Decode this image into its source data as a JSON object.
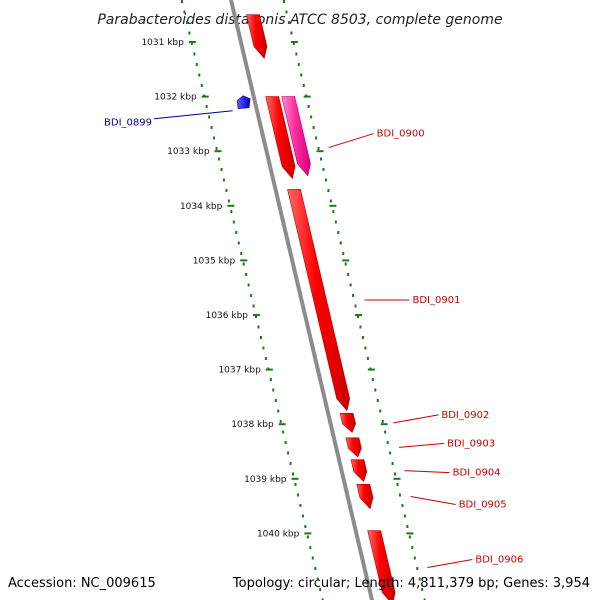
{
  "title": "Parabacteroides distasonis ATCC 8503, complete genome",
  "footer": {
    "accession": "Accession: NC_009615",
    "summary": "Topology: circular; Length: 4,811,379 bp; Genes: 3,954"
  },
  "colors": {
    "backbone": "#8c8c8c",
    "tick": "#1a7a1a",
    "gene_forward": "#ff0000",
    "gene_forward_dark": "#d40000",
    "gene_pink": "#ff2ea0",
    "gene_reverse": "#0000ee",
    "label_forward": "#cc0000",
    "label_reverse": "#000099"
  },
  "ticks": [
    {
      "kbp": 1031,
      "label": "1031 kbp"
    },
    {
      "kbp": 1032,
      "label": "1032 kbp"
    },
    {
      "kbp": 1033,
      "label": "1033 kbp"
    },
    {
      "kbp": 1034,
      "label": "1034 kbp"
    },
    {
      "kbp": 1035,
      "label": "1035 kbp"
    },
    {
      "kbp": 1036,
      "label": "1036 kbp"
    },
    {
      "kbp": 1037,
      "label": "1037 kbp"
    },
    {
      "kbp": 1038,
      "label": "1038 kbp"
    },
    {
      "kbp": 1039,
      "label": "1039 kbp"
    },
    {
      "kbp": 1040,
      "label": "1040 kbp"
    }
  ],
  "genes": [
    {
      "name": "",
      "start_kbp": 1030.5,
      "end_kbp": 1031.3,
      "strand": "forward",
      "track": 0,
      "color": "red"
    },
    {
      "name": "BDI_0899",
      "start_kbp": 1032.0,
      "end_kbp": 1032.15,
      "strand": "reverse",
      "track": -1,
      "color": "blue"
    },
    {
      "name": "BDI_0900",
      "start_kbp": 1032.0,
      "end_kbp": 1033.5,
      "strand": "forward",
      "track": 0,
      "color": "red"
    },
    {
      "name": "",
      "start_kbp": 1032.0,
      "end_kbp": 1033.45,
      "strand": "forward",
      "track": 1,
      "color": "pink"
    },
    {
      "name": "BDI_0901",
      "start_kbp": 1033.7,
      "end_kbp": 1037.75,
      "strand": "forward",
      "track": 0,
      "color": "red"
    },
    {
      "name": "BDI_0902",
      "start_kbp": 1037.8,
      "end_kbp": 1038.15,
      "strand": "forward",
      "track": 0,
      "color": "red"
    },
    {
      "name": "BDI_0903",
      "start_kbp": 1038.25,
      "end_kbp": 1038.6,
      "strand": "forward",
      "track": 0,
      "color": "red"
    },
    {
      "name": "BDI_0904",
      "start_kbp": 1038.65,
      "end_kbp": 1039.05,
      "strand": "forward",
      "track": 0,
      "color": "red"
    },
    {
      "name": "BDI_0905",
      "start_kbp": 1039.1,
      "end_kbp": 1039.55,
      "strand": "forward",
      "track": 0,
      "color": "red"
    },
    {
      "name": "BDI_0906",
      "start_kbp": 1039.95,
      "end_kbp": 1041.3,
      "strand": "forward",
      "track": 0,
      "color": "red"
    }
  ]
}
